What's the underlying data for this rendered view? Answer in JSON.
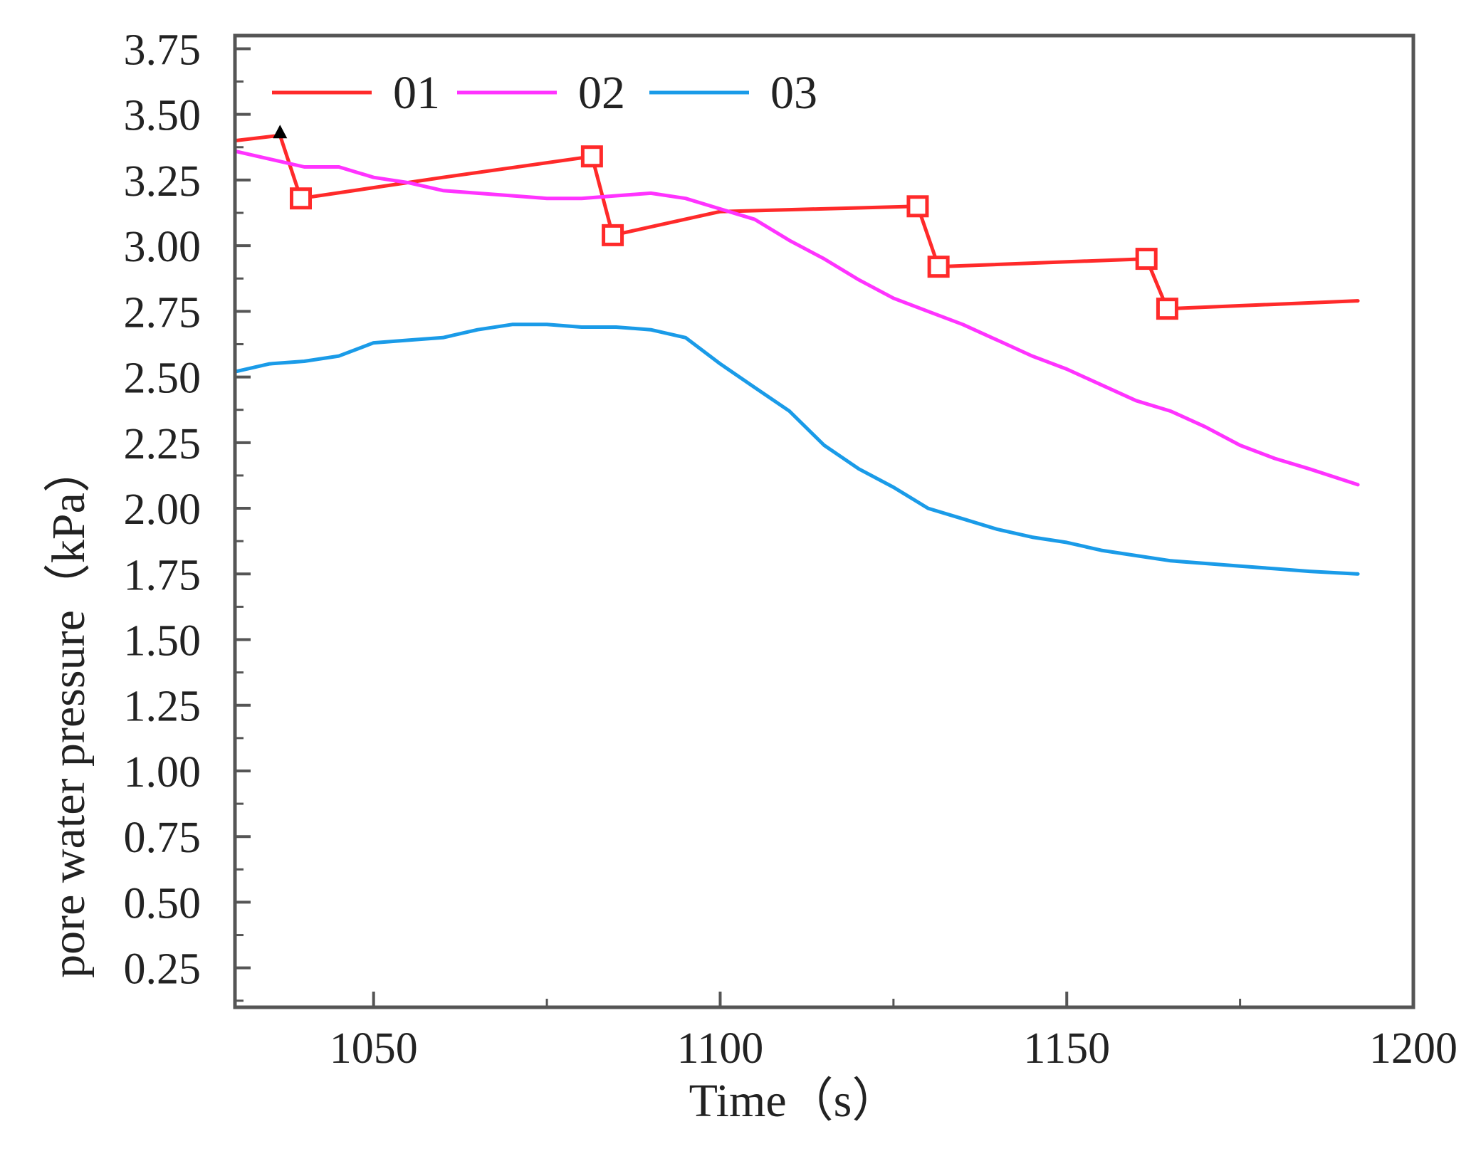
{
  "chart_data": {
    "type": "line",
    "title": "",
    "xlabel": "Time（s）",
    "ylabel": "pore water pressure（kPa）",
    "xlim": [
      1030,
      1200
    ],
    "ylim": [
      0.1,
      3.8
    ],
    "x_ticks": [
      1050,
      1100,
      1150,
      1200
    ],
    "x_tick_labels": [
      "1050",
      "1100",
      "1150",
      "1200"
    ],
    "y_ticks": [
      0.25,
      0.5,
      0.75,
      1.0,
      1.25,
      1.5,
      1.75,
      2.0,
      2.25,
      2.5,
      2.75,
      3.0,
      3.25,
      3.5,
      3.75
    ],
    "y_tick_labels": [
      "0.25",
      "0.50",
      "0.75",
      "1.00",
      "1.25",
      "1.50",
      "1.75",
      "2.00",
      "2.25",
      "2.50",
      "2.75",
      "3.00",
      "3.25",
      "3.50",
      "3.75"
    ],
    "grid": false,
    "legend": {
      "position": "top-left",
      "orientation": "horizontal"
    },
    "series": [
      {
        "name": "01",
        "color": "#ff2a2a",
        "x": [
          1030,
          1036.5,
          1039.5,
          1060,
          1081.5,
          1084.5,
          1100,
          1128.5,
          1131.5,
          1161.5,
          1164.5,
          1192
        ],
        "y": [
          3.4,
          3.42,
          3.18,
          3.26,
          3.34,
          3.04,
          3.13,
          3.15,
          2.92,
          2.95,
          2.76,
          2.79
        ],
        "markers": [
          {
            "x": 1039.5,
            "y": 3.18
          },
          {
            "x": 1081.5,
            "y": 3.34
          },
          {
            "x": 1084.5,
            "y": 3.04
          },
          {
            "x": 1128.5,
            "y": 3.15
          },
          {
            "x": 1131.5,
            "y": 2.92
          },
          {
            "x": 1161.5,
            "y": 2.95
          },
          {
            "x": 1164.5,
            "y": 2.76
          }
        ],
        "marker_shape": "square",
        "annotation_marker": {
          "x": 1036.5,
          "y": 3.42,
          "shape": "triangle",
          "color": "#000000"
        }
      },
      {
        "name": "02",
        "color": "#ff33ff",
        "x": [
          1030,
          1035,
          1040,
          1045,
          1050,
          1055,
          1060,
          1065,
          1070,
          1075,
          1080,
          1085,
          1090,
          1095,
          1100,
          1105,
          1110,
          1115,
          1120,
          1125,
          1130,
          1135,
          1140,
          1145,
          1150,
          1155,
          1160,
          1165,
          1170,
          1175,
          1180,
          1185,
          1192
        ],
        "y": [
          3.36,
          3.33,
          3.3,
          3.3,
          3.26,
          3.24,
          3.21,
          3.2,
          3.19,
          3.18,
          3.18,
          3.19,
          3.2,
          3.18,
          3.14,
          3.1,
          3.02,
          2.95,
          2.87,
          2.8,
          2.75,
          2.7,
          2.64,
          2.58,
          2.53,
          2.47,
          2.41,
          2.37,
          2.31,
          2.24,
          2.19,
          2.15,
          2.09
        ]
      },
      {
        "name": "03",
        "color": "#1a9be8",
        "x": [
          1030,
          1035,
          1040,
          1045,
          1050,
          1055,
          1060,
          1065,
          1070,
          1075,
          1080,
          1085,
          1090,
          1095,
          1100,
          1105,
          1110,
          1115,
          1120,
          1125,
          1130,
          1135,
          1140,
          1145,
          1150,
          1155,
          1160,
          1165,
          1170,
          1175,
          1180,
          1185,
          1192
        ],
        "y": [
          2.52,
          2.55,
          2.56,
          2.58,
          2.63,
          2.64,
          2.65,
          2.68,
          2.7,
          2.7,
          2.69,
          2.69,
          2.68,
          2.65,
          2.55,
          2.46,
          2.37,
          2.24,
          2.15,
          2.08,
          2.0,
          1.96,
          1.92,
          1.89,
          1.87,
          1.84,
          1.82,
          1.8,
          1.79,
          1.78,
          1.77,
          1.76,
          1.75
        ]
      }
    ]
  }
}
